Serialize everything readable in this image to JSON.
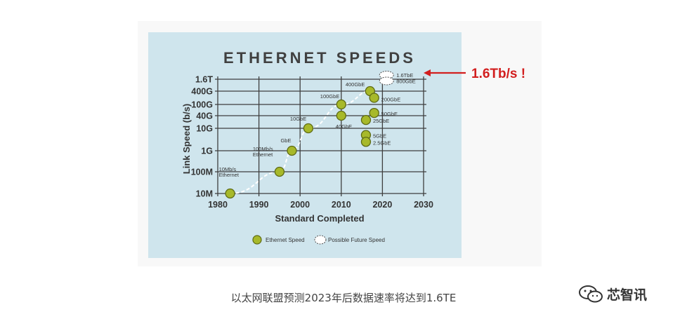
{
  "chart_data": {
    "type": "scatter",
    "title": "ETHERNET SPEEDS",
    "xlabel": "Standard Completed",
    "ylabel": "Link Speed (b/s)",
    "x_ticks": [
      "1980",
      "1990",
      "2000",
      "2010",
      "2020",
      "2030"
    ],
    "xlim": [
      1980,
      2030
    ],
    "y_scale": "log",
    "y_ticks": [
      "10M",
      "100M",
      "1G",
      "10G",
      "40G",
      "100G",
      "400G",
      "1.6T"
    ],
    "grid": true,
    "legend_position": "bottom",
    "series": [
      {
        "name": "Ethernet Speed",
        "points": [
          {
            "label": "10Mb/s Ethernet",
            "x": 1983,
            "y": "10M"
          },
          {
            "label": "100Mb/s Ethernet",
            "x": 1995,
            "y": "100M"
          },
          {
            "label": "GbE",
            "x": 1998,
            "y": "1G"
          },
          {
            "label": "10GbE",
            "x": 2002,
            "y": "10G"
          },
          {
            "label": "40GbE",
            "x": 2010,
            "y": "40G"
          },
          {
            "label": "100GbE",
            "x": 2010,
            "y": "100G"
          },
          {
            "label": "400GbE",
            "x": 2017,
            "y": "400G"
          },
          {
            "label": "200GbE",
            "x": 2018,
            "y": "200G"
          },
          {
            "label": "50GbE",
            "x": 2018,
            "y": "50G"
          },
          {
            "label": "25GbE",
            "x": 2016,
            "y": "25G"
          },
          {
            "label": "5GbE",
            "x": 2016,
            "y": "5G"
          },
          {
            "label": "2.5GbE",
            "x": 2016,
            "y": "2.5G"
          }
        ]
      },
      {
        "name": "Possible Future Speed",
        "points": [
          {
            "label": "1.6TbE",
            "x": 2021,
            "y": "1.6T"
          },
          {
            "label": "800GbE",
            "x": 2021,
            "y": "800G"
          }
        ]
      }
    ],
    "annotation": "1.6Tb/s !"
  },
  "caption": "以太网联盟预测2023年后数据速率将达到1.6TE",
  "watermark": "芯智讯",
  "colors": {
    "panel": "#cfe5ed",
    "point_fill": "#a7b92a",
    "point_stroke": "#5d6a14",
    "annotation": "#d21e1e",
    "grid": "#3f3f3f"
  }
}
